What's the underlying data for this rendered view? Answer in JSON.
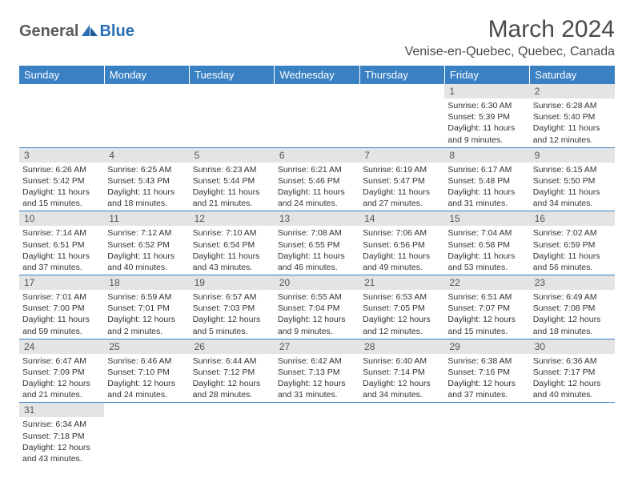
{
  "brand": {
    "part1": "General",
    "part2": "Blue"
  },
  "title": "March 2024",
  "location": "Venise-en-Quebec, Quebec, Canada",
  "colors": {
    "header_bg": "#3a81c4",
    "header_text": "#ffffff",
    "daynum_bg": "#e4e4e4",
    "border": "#3a81c4",
    "brand_gray": "#5a5a5a",
    "brand_blue": "#2a6fb5"
  },
  "weekdays": [
    "Sunday",
    "Monday",
    "Tuesday",
    "Wednesday",
    "Thursday",
    "Friday",
    "Saturday"
  ],
  "weeks": [
    [
      null,
      null,
      null,
      null,
      null,
      {
        "n": "1",
        "sr": "Sunrise: 6:30 AM",
        "ss": "Sunset: 5:39 PM",
        "d1": "Daylight: 11 hours",
        "d2": "and 9 minutes."
      },
      {
        "n": "2",
        "sr": "Sunrise: 6:28 AM",
        "ss": "Sunset: 5:40 PM",
        "d1": "Daylight: 11 hours",
        "d2": "and 12 minutes."
      }
    ],
    [
      {
        "n": "3",
        "sr": "Sunrise: 6:26 AM",
        "ss": "Sunset: 5:42 PM",
        "d1": "Daylight: 11 hours",
        "d2": "and 15 minutes."
      },
      {
        "n": "4",
        "sr": "Sunrise: 6:25 AM",
        "ss": "Sunset: 5:43 PM",
        "d1": "Daylight: 11 hours",
        "d2": "and 18 minutes."
      },
      {
        "n": "5",
        "sr": "Sunrise: 6:23 AM",
        "ss": "Sunset: 5:44 PM",
        "d1": "Daylight: 11 hours",
        "d2": "and 21 minutes."
      },
      {
        "n": "6",
        "sr": "Sunrise: 6:21 AM",
        "ss": "Sunset: 5:46 PM",
        "d1": "Daylight: 11 hours",
        "d2": "and 24 minutes."
      },
      {
        "n": "7",
        "sr": "Sunrise: 6:19 AM",
        "ss": "Sunset: 5:47 PM",
        "d1": "Daylight: 11 hours",
        "d2": "and 27 minutes."
      },
      {
        "n": "8",
        "sr": "Sunrise: 6:17 AM",
        "ss": "Sunset: 5:48 PM",
        "d1": "Daylight: 11 hours",
        "d2": "and 31 minutes."
      },
      {
        "n": "9",
        "sr": "Sunrise: 6:15 AM",
        "ss": "Sunset: 5:50 PM",
        "d1": "Daylight: 11 hours",
        "d2": "and 34 minutes."
      }
    ],
    [
      {
        "n": "10",
        "sr": "Sunrise: 7:14 AM",
        "ss": "Sunset: 6:51 PM",
        "d1": "Daylight: 11 hours",
        "d2": "and 37 minutes."
      },
      {
        "n": "11",
        "sr": "Sunrise: 7:12 AM",
        "ss": "Sunset: 6:52 PM",
        "d1": "Daylight: 11 hours",
        "d2": "and 40 minutes."
      },
      {
        "n": "12",
        "sr": "Sunrise: 7:10 AM",
        "ss": "Sunset: 6:54 PM",
        "d1": "Daylight: 11 hours",
        "d2": "and 43 minutes."
      },
      {
        "n": "13",
        "sr": "Sunrise: 7:08 AM",
        "ss": "Sunset: 6:55 PM",
        "d1": "Daylight: 11 hours",
        "d2": "and 46 minutes."
      },
      {
        "n": "14",
        "sr": "Sunrise: 7:06 AM",
        "ss": "Sunset: 6:56 PM",
        "d1": "Daylight: 11 hours",
        "d2": "and 49 minutes."
      },
      {
        "n": "15",
        "sr": "Sunrise: 7:04 AM",
        "ss": "Sunset: 6:58 PM",
        "d1": "Daylight: 11 hours",
        "d2": "and 53 minutes."
      },
      {
        "n": "16",
        "sr": "Sunrise: 7:02 AM",
        "ss": "Sunset: 6:59 PM",
        "d1": "Daylight: 11 hours",
        "d2": "and 56 minutes."
      }
    ],
    [
      {
        "n": "17",
        "sr": "Sunrise: 7:01 AM",
        "ss": "Sunset: 7:00 PM",
        "d1": "Daylight: 11 hours",
        "d2": "and 59 minutes."
      },
      {
        "n": "18",
        "sr": "Sunrise: 6:59 AM",
        "ss": "Sunset: 7:01 PM",
        "d1": "Daylight: 12 hours",
        "d2": "and 2 minutes."
      },
      {
        "n": "19",
        "sr": "Sunrise: 6:57 AM",
        "ss": "Sunset: 7:03 PM",
        "d1": "Daylight: 12 hours",
        "d2": "and 5 minutes."
      },
      {
        "n": "20",
        "sr": "Sunrise: 6:55 AM",
        "ss": "Sunset: 7:04 PM",
        "d1": "Daylight: 12 hours",
        "d2": "and 9 minutes."
      },
      {
        "n": "21",
        "sr": "Sunrise: 6:53 AM",
        "ss": "Sunset: 7:05 PM",
        "d1": "Daylight: 12 hours",
        "d2": "and 12 minutes."
      },
      {
        "n": "22",
        "sr": "Sunrise: 6:51 AM",
        "ss": "Sunset: 7:07 PM",
        "d1": "Daylight: 12 hours",
        "d2": "and 15 minutes."
      },
      {
        "n": "23",
        "sr": "Sunrise: 6:49 AM",
        "ss": "Sunset: 7:08 PM",
        "d1": "Daylight: 12 hours",
        "d2": "and 18 minutes."
      }
    ],
    [
      {
        "n": "24",
        "sr": "Sunrise: 6:47 AM",
        "ss": "Sunset: 7:09 PM",
        "d1": "Daylight: 12 hours",
        "d2": "and 21 minutes."
      },
      {
        "n": "25",
        "sr": "Sunrise: 6:46 AM",
        "ss": "Sunset: 7:10 PM",
        "d1": "Daylight: 12 hours",
        "d2": "and 24 minutes."
      },
      {
        "n": "26",
        "sr": "Sunrise: 6:44 AM",
        "ss": "Sunset: 7:12 PM",
        "d1": "Daylight: 12 hours",
        "d2": "and 28 minutes."
      },
      {
        "n": "27",
        "sr": "Sunrise: 6:42 AM",
        "ss": "Sunset: 7:13 PM",
        "d1": "Daylight: 12 hours",
        "d2": "and 31 minutes."
      },
      {
        "n": "28",
        "sr": "Sunrise: 6:40 AM",
        "ss": "Sunset: 7:14 PM",
        "d1": "Daylight: 12 hours",
        "d2": "and 34 minutes."
      },
      {
        "n": "29",
        "sr": "Sunrise: 6:38 AM",
        "ss": "Sunset: 7:16 PM",
        "d1": "Daylight: 12 hours",
        "d2": "and 37 minutes."
      },
      {
        "n": "30",
        "sr": "Sunrise: 6:36 AM",
        "ss": "Sunset: 7:17 PM",
        "d1": "Daylight: 12 hours",
        "d2": "and 40 minutes."
      }
    ],
    [
      {
        "n": "31",
        "sr": "Sunrise: 6:34 AM",
        "ss": "Sunset: 7:18 PM",
        "d1": "Daylight: 12 hours",
        "d2": "and 43 minutes."
      },
      null,
      null,
      null,
      null,
      null,
      null
    ]
  ]
}
